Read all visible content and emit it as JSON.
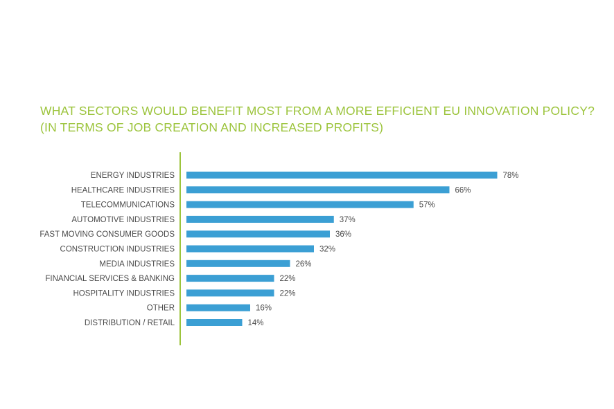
{
  "title_line1": "WHAT SECTORS WOULD BENEFIT MOST FROM A MORE EFFICIENT EU INNOVATION POLICY?",
  "title_line2": "(IN TERMS OF JOB CREATION AND INCREASED PROFITS)",
  "colors": {
    "title": "#9cc43c",
    "axis": "#9cc43c",
    "bar": "#3b9fd4",
    "label": "#4a4a4a"
  },
  "chart_data": {
    "type": "bar",
    "orientation": "horizontal",
    "title": "WHAT SECTORS WOULD BENEFIT MOST FROM A MORE EFFICIENT EU INNOVATION POLICY? (IN TERMS OF JOB CREATION AND INCREASED PROFITS)",
    "categories": [
      "ENERGY INDUSTRIES",
      "HEALTHCARE INDUSTRIES",
      "TELECOMMUNICATIONS",
      "AUTOMOTIVE INDUSTRIES",
      "FAST MOVING CONSUMER GOODS",
      "CONSTRUCTION INDUSTRIES",
      "MEDIA INDUSTRIES",
      "FINANCIAL SERVICES & BANKING",
      "HOSPITALITY INDUSTRIES",
      "OTHER",
      "DISTRIBUTION / RETAIL"
    ],
    "values": [
      78,
      66,
      57,
      37,
      36,
      32,
      26,
      22,
      22,
      16,
      14
    ],
    "value_labels": [
      "78%",
      "66%",
      "57%",
      "37%",
      "36%",
      "32%",
      "26%",
      "22%",
      "22%",
      "16%",
      "14%"
    ],
    "xlim": [
      0,
      100
    ],
    "grid": false,
    "legend": "none"
  }
}
